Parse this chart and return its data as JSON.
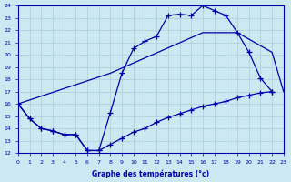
{
  "xlabel": "Graphe des températures (°c)",
  "xlim": [
    0,
    23
  ],
  "ylim": [
    12,
    24
  ],
  "yticks": [
    12,
    13,
    14,
    15,
    16,
    17,
    18,
    19,
    20,
    21,
    22,
    23,
    24
  ],
  "xticks": [
    0,
    1,
    2,
    3,
    4,
    5,
    6,
    7,
    8,
    9,
    10,
    11,
    12,
    13,
    14,
    15,
    16,
    17,
    18,
    19,
    20,
    21,
    22,
    23
  ],
  "bg_color": "#cce8f0",
  "line_color": "#0000aa",
  "grid_color": "#aaccdd",
  "line1_x": [
    0,
    1,
    2,
    3,
    4,
    5,
    6,
    7,
    8,
    9,
    10,
    11,
    12,
    13,
    14,
    15,
    16,
    17,
    18,
    19,
    20,
    21,
    22,
    23
  ],
  "line1_y": [
    16.0,
    14.8,
    14.0,
    13.8,
    13.5,
    13.5,
    12.2,
    12.2,
    15.3,
    18.5,
    20.5,
    21.1,
    21.5,
    23.2,
    23.3,
    23.2,
    24.0,
    23.6,
    23.2,
    21.8,
    20.2,
    18.1,
    17.0,
    null
  ],
  "line2_x": [
    0,
    1,
    2,
    3,
    4,
    5,
    6,
    7,
    8,
    9,
    10,
    11,
    12,
    13,
    14,
    15,
    16,
    17,
    18,
    19,
    20,
    21,
    22,
    23
  ],
  "line2_y": [
    16.0,
    14.8,
    14.0,
    13.8,
    13.5,
    13.5,
    12.2,
    12.2,
    12.7,
    13.2,
    13.7,
    14.0,
    14.5,
    14.9,
    15.2,
    15.5,
    15.8,
    16.0,
    16.2,
    16.5,
    16.7,
    16.9,
    17.0,
    null
  ],
  "line3_x": [
    0,
    8,
    16,
    19,
    22,
    23
  ],
  "line3_y": [
    16.0,
    18.5,
    21.8,
    21.8,
    20.2,
    17.0
  ]
}
